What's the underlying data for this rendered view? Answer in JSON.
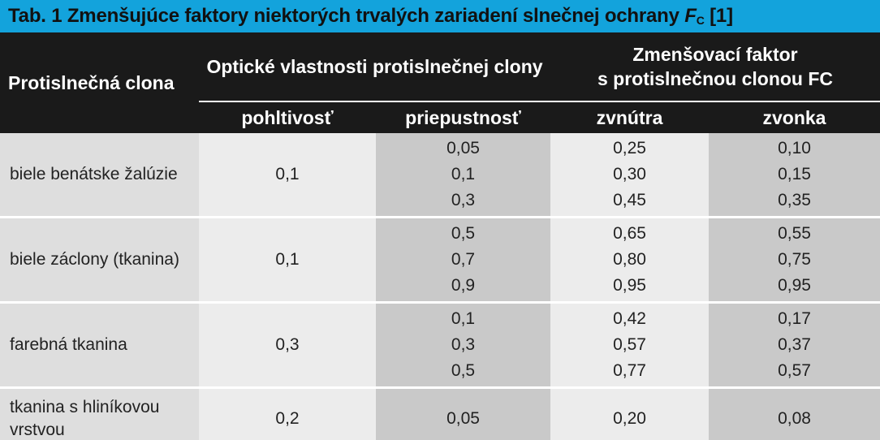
{
  "caption": {
    "text": "Tab. 1 Zmenšujúce faktory niektorých trvalých zariadení slnečnej ochrany ",
    "symbol": "F",
    "symbol_sub": "C",
    "ref": " [1]"
  },
  "header": {
    "col_shade": "Protislnečná clona",
    "group_optical": "Optické vlastnosti protislnečnej clony",
    "group_factor_line1": "Zmenšovací faktor",
    "group_factor_line2": "s protislnečnou clonou FC",
    "sub_absorption": "pohltivosť",
    "sub_transmission": "priepustnosť",
    "sub_inside": "zvnútra",
    "sub_outside": "zvonka"
  },
  "rows": [
    {
      "name": "biele benátske žalúzie",
      "absorption": "0,1",
      "transmission": [
        "0,05",
        "0,1",
        "0,3"
      ],
      "inside": [
        "0,25",
        "0,30",
        "0,45"
      ],
      "outside": [
        "0,10",
        "0,15",
        "0,35"
      ]
    },
    {
      "name": "biele záclony (tkanina)",
      "absorption": "0,1",
      "transmission": [
        "0,5",
        "0,7",
        "0,9"
      ],
      "inside": [
        "0,65",
        "0,80",
        "0,95"
      ],
      "outside": [
        "0,55",
        "0,75",
        "0,95"
      ]
    },
    {
      "name": "farebná tkanina",
      "absorption": "0,3",
      "transmission": [
        "0,1",
        "0,3",
        "0,5"
      ],
      "inside": [
        "0,42",
        "0,57",
        "0,77"
      ],
      "outside": [
        "0,17",
        "0,37",
        "0,57"
      ]
    },
    {
      "name": "tkanina s hliníkovou vrstvou",
      "absorption": "0,2",
      "transmission": [
        "0,05"
      ],
      "inside": [
        "0,20"
      ],
      "outside": [
        "0,08"
      ]
    }
  ],
  "colors": {
    "caption_bg": "#13a3dc",
    "header_bg": "#1a1a1a",
    "cell_light": "#ececec",
    "cell_dark": "#c9c9c9"
  }
}
